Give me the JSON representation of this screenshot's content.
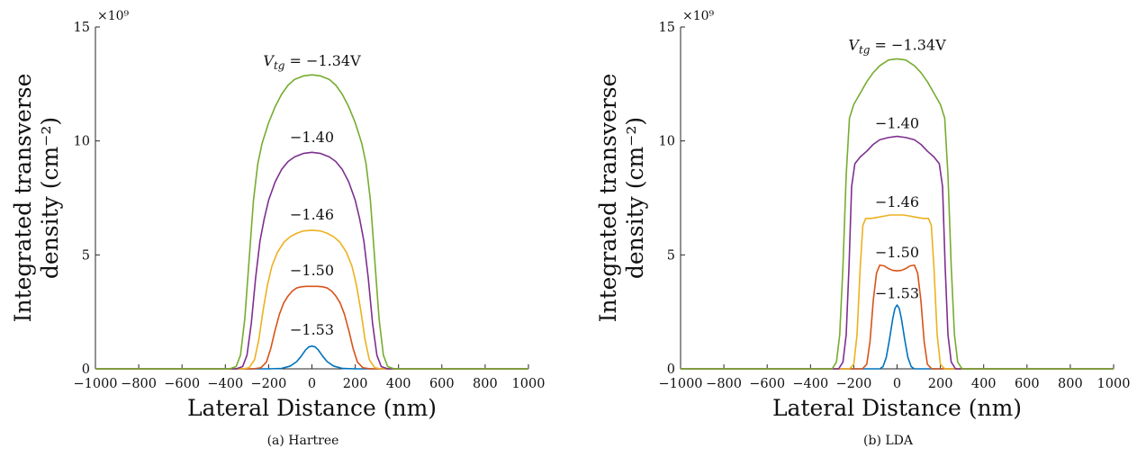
{
  "chart_data": [
    {
      "type": "line",
      "caption": "(a) Hartree",
      "xlabel": "Lateral Distance (nm)",
      "ylabel_line1": "Integrated transverse",
      "ylabel_line2": "density (cm⁻²)",
      "xlim": [
        -1000,
        1000
      ],
      "ylim": [
        0,
        15
      ],
      "y_exponent": "×10⁹",
      "xticks": [
        -1000,
        -800,
        -600,
        -400,
        -200,
        0,
        200,
        400,
        600,
        800,
        1000
      ],
      "yticks": [
        0,
        5,
        10,
        15
      ],
      "tick_labels_x": [
        "−1000",
        "−800",
        "−600",
        "−400",
        "−200",
        "0",
        "200",
        "400",
        "600",
        "800",
        "1000"
      ],
      "tick_labels_y": [
        "0",
        "5",
        "10",
        "15"
      ],
      "grid": false,
      "series": [
        {
          "color": "#0072BD",
          "label": "−1.53",
          "label_is_vtg": false,
          "x": [
            -1000,
            -200,
            -140,
            -100,
            -70,
            -50,
            -30,
            -15,
            0,
            15,
            30,
            50,
            70,
            100,
            140,
            200,
            1000
          ],
          "y": [
            0,
            0,
            0.02,
            0.12,
            0.32,
            0.55,
            0.82,
            0.96,
            1.0,
            0.96,
            0.82,
            0.55,
            0.32,
            0.12,
            0.02,
            0,
            0
          ]
        },
        {
          "color": "#D95319",
          "label": "−1.50",
          "label_is_vtg": false,
          "x": [
            -1000,
            -270,
            -235,
            -210,
            -190,
            -170,
            -150,
            -130,
            -110,
            -90,
            -70,
            -50,
            -25,
            0,
            25,
            50,
            70,
            90,
            110,
            130,
            150,
            170,
            190,
            210,
            235,
            270,
            1000
          ],
          "y": [
            0,
            0,
            0.05,
            0.3,
            0.9,
            1.7,
            2.4,
            2.9,
            3.2,
            3.42,
            3.55,
            3.6,
            3.62,
            3.62,
            3.62,
            3.6,
            3.55,
            3.42,
            3.2,
            2.9,
            2.4,
            1.7,
            0.9,
            0.3,
            0.05,
            0,
            0
          ]
        },
        {
          "color": "#EDB120",
          "label": "−1.46",
          "label_is_vtg": false,
          "x": [
            -1000,
            -320,
            -290,
            -265,
            -245,
            -225,
            -205,
            -185,
            -160,
            -130,
            -100,
            -70,
            -40,
            0,
            40,
            70,
            100,
            130,
            160,
            185,
            205,
            225,
            245,
            265,
            290,
            320,
            1000
          ],
          "y": [
            0,
            0,
            0.05,
            0.4,
            1.3,
            2.6,
            3.7,
            4.5,
            5.1,
            5.55,
            5.8,
            5.95,
            6.05,
            6.08,
            6.05,
            5.95,
            5.8,
            5.55,
            5.1,
            4.5,
            3.7,
            2.6,
            1.3,
            0.4,
            0.05,
            0,
            0
          ]
        },
        {
          "color": "#7E2F8E",
          "label": "−1.40",
          "label_is_vtg": false,
          "x": [
            -1000,
            -350,
            -320,
            -300,
            -280,
            -260,
            -240,
            -220,
            -200,
            -170,
            -140,
            -110,
            -80,
            -40,
            0,
            40,
            80,
            110,
            140,
            170,
            200,
            220,
            240,
            260,
            280,
            300,
            320,
            350,
            1000
          ],
          "y": [
            0,
            0,
            0.1,
            0.6,
            2.0,
            4.0,
            5.6,
            6.6,
            7.4,
            8.2,
            8.75,
            9.1,
            9.3,
            9.45,
            9.5,
            9.45,
            9.3,
            9.1,
            8.75,
            8.2,
            7.4,
            6.6,
            5.6,
            4.0,
            2.0,
            0.6,
            0.1,
            0,
            0
          ]
        },
        {
          "color": "#77AC30",
          "label": "V_tg = −1.34V",
          "label_is_vtg": true,
          "x": [
            -1000,
            -380,
            -350,
            -330,
            -310,
            -290,
            -270,
            -250,
            -230,
            -200,
            -170,
            -140,
            -110,
            -80,
            -40,
            0,
            40,
            80,
            110,
            140,
            170,
            200,
            230,
            250,
            270,
            290,
            310,
            330,
            350,
            380,
            1000
          ],
          "y": [
            0,
            0,
            0.1,
            0.6,
            2.2,
            4.8,
            7.4,
            9.0,
            9.9,
            10.8,
            11.5,
            12.05,
            12.45,
            12.7,
            12.85,
            12.9,
            12.85,
            12.7,
            12.45,
            12.05,
            11.5,
            10.8,
            9.9,
            9.0,
            7.4,
            4.8,
            2.2,
            0.6,
            0.1,
            0,
            0
          ]
        }
      ],
      "annotations": [
        {
          "text": "−1.53",
          "x": 0,
          "y": 1.5
        },
        {
          "text": "−1.50",
          "x": 0,
          "y": 4.1
        },
        {
          "text": "−1.46",
          "x": 0,
          "y": 6.55
        },
        {
          "text": "−1.40",
          "x": 0,
          "y": 9.95
        },
        {
          "text": "V_tg = −1.34V",
          "x": 0,
          "y": 13.3
        }
      ]
    },
    {
      "type": "line",
      "caption": "(b) LDA",
      "xlabel": "Lateral Distance (nm)",
      "ylabel_line1": "Integrated transverse",
      "ylabel_line2": "density (cm⁻²)",
      "xlim": [
        -1000,
        1000
      ],
      "ylim": [
        0,
        15
      ],
      "y_exponent": "×10⁹",
      "xticks": [
        -1000,
        -800,
        -600,
        -400,
        -200,
        0,
        200,
        400,
        600,
        800,
        1000
      ],
      "yticks": [
        0,
        5,
        10,
        15
      ],
      "tick_labels_x": [
        "−1000",
        "−800",
        "−600",
        "−400",
        "−200",
        "0",
        "200",
        "400",
        "600",
        "800",
        "1000"
      ],
      "tick_labels_y": [
        "0",
        "5",
        "10",
        "15"
      ],
      "grid": false,
      "series": [
        {
          "color": "#0072BD",
          "label": "−1.53",
          "label_is_vtg": false,
          "x": [
            -1000,
            -80,
            -65,
            -50,
            -35,
            -20,
            -10,
            0,
            10,
            20,
            35,
            50,
            65,
            80,
            1000
          ],
          "y": [
            0,
            0,
            0.1,
            0.5,
            1.3,
            2.2,
            2.65,
            2.8,
            2.65,
            2.2,
            1.3,
            0.5,
            0.1,
            0,
            0
          ]
        },
        {
          "color": "#D95319",
          "label": "−1.50",
          "label_is_vtg": false,
          "x": [
            -1000,
            -160,
            -140,
            -125,
            -110,
            -95,
            -80,
            -60,
            -40,
            -20,
            0,
            20,
            40,
            60,
            80,
            95,
            110,
            125,
            140,
            160,
            1000
          ],
          "y": [
            0,
            0,
            0.2,
            1.2,
            3.0,
            4.2,
            4.55,
            4.52,
            4.4,
            4.32,
            4.3,
            4.32,
            4.4,
            4.52,
            4.55,
            4.2,
            3.0,
            1.2,
            0.2,
            0,
            0
          ]
        },
        {
          "color": "#EDB120",
          "label": "−1.46",
          "label_is_vtg": false,
          "x": [
            -1000,
            -220,
            -200,
            -185,
            -170,
            -158,
            -145,
            -120,
            -90,
            -60,
            -30,
            0,
            30,
            60,
            90,
            120,
            145,
            158,
            170,
            185,
            200,
            220,
            1000
          ],
          "y": [
            0,
            0,
            0.2,
            1.5,
            4.5,
            6.3,
            6.6,
            6.6,
            6.65,
            6.7,
            6.75,
            6.75,
            6.75,
            6.7,
            6.65,
            6.6,
            6.6,
            6.3,
            4.5,
            1.5,
            0.2,
            0,
            0
          ]
        },
        {
          "color": "#7E2F8E",
          "label": "−1.40",
          "label_is_vtg": false,
          "x": [
            -1000,
            -270,
            -250,
            -235,
            -222,
            -210,
            -195,
            -170,
            -140,
            -110,
            -80,
            -40,
            0,
            40,
            80,
            110,
            140,
            170,
            195,
            210,
            222,
            235,
            250,
            270,
            1000
          ],
          "y": [
            0,
            0,
            0.3,
            1.5,
            4.5,
            8.0,
            9.0,
            9.3,
            9.55,
            9.85,
            10.05,
            10.15,
            10.2,
            10.15,
            10.05,
            9.85,
            9.55,
            9.3,
            9.0,
            8.0,
            4.5,
            1.5,
            0.3,
            0,
            0
          ]
        },
        {
          "color": "#77AC30",
          "label": "V_tg = −1.34V",
          "label_is_vtg": true,
          "x": [
            -1000,
            -300,
            -280,
            -265,
            -250,
            -235,
            -220,
            -200,
            -170,
            -140,
            -110,
            -80,
            -40,
            0,
            40,
            80,
            110,
            140,
            170,
            200,
            220,
            235,
            250,
            265,
            280,
            300,
            1000
          ],
          "y": [
            0,
            0,
            0.3,
            1.5,
            4.5,
            8.5,
            11.0,
            11.6,
            12.1,
            12.6,
            13.0,
            13.3,
            13.55,
            13.6,
            13.55,
            13.3,
            13.0,
            12.6,
            12.1,
            11.6,
            11.0,
            8.5,
            4.5,
            1.5,
            0.3,
            0,
            0
          ]
        }
      ],
      "annotations": [
        {
          "text": "−1.53",
          "x": 0,
          "y": 3.1
        },
        {
          "text": "−1.50",
          "x": 0,
          "y": 4.9
        },
        {
          "text": "−1.46",
          "x": 0,
          "y": 7.1
        },
        {
          "text": "−1.40",
          "x": 0,
          "y": 10.55
        },
        {
          "text": "V_tg = −1.34V",
          "x": 0,
          "y": 14.0
        }
      ]
    }
  ]
}
